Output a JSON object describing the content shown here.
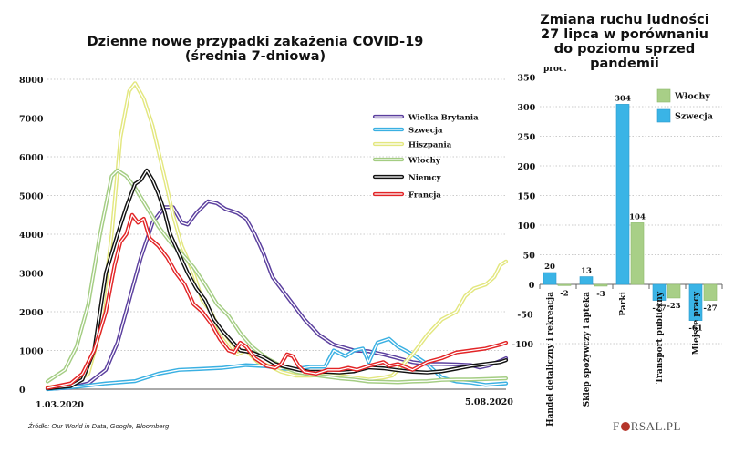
{
  "source_note": "Źródło: Our World in Data, Google,  Bloomberg",
  "logo": {
    "prefix": "F",
    "suffix": "RSAL.PL"
  },
  "chart_data": [
    {
      "type": "line",
      "title": "Dzienne nowe przypadki zakażenia COVID-19",
      "subtitle": "(średnia 7-dniowa)",
      "xlabel": "",
      "ylabel": "",
      "x_unit": "days since 1.03.2020",
      "x_range": [
        0,
        157
      ],
      "x_tick_labels": [
        "1.03.2020",
        "5.08.2020"
      ],
      "ylim": [
        0,
        8000
      ],
      "y_ticks": [
        0,
        1000,
        2000,
        3000,
        4000,
        5000,
        6000,
        7000,
        8000
      ],
      "grid": true,
      "legend_position": "top-right",
      "series": [
        {
          "name": "Wielka Brytania",
          "color": "#5b3f9e",
          "points": [
            [
              0,
              5
            ],
            [
              8,
              40
            ],
            [
              14,
              150
            ],
            [
              20,
              500
            ],
            [
              24,
              1200
            ],
            [
              28,
              2300
            ],
            [
              32,
              3400
            ],
            [
              36,
              4300
            ],
            [
              40,
              4700
            ],
            [
              43,
              4700
            ],
            [
              46,
              4300
            ],
            [
              48,
              4250
            ],
            [
              51,
              4550
            ],
            [
              55,
              4850
            ],
            [
              58,
              4800
            ],
            [
              61,
              4650
            ],
            [
              65,
              4550
            ],
            [
              68,
              4400
            ],
            [
              71,
              4000
            ],
            [
              74,
              3500
            ],
            [
              77,
              2900
            ],
            [
              80,
              2600
            ],
            [
              84,
              2200
            ],
            [
              88,
              1800
            ],
            [
              93,
              1400
            ],
            [
              98,
              1150
            ],
            [
              105,
              1000
            ],
            [
              110,
              980
            ],
            [
              115,
              900
            ],
            [
              120,
              800
            ],
            [
              125,
              700
            ],
            [
              130,
              650
            ],
            [
              135,
              650
            ],
            [
              140,
              640
            ],
            [
              145,
              620
            ],
            [
              148,
              560
            ],
            [
              151,
              610
            ],
            [
              155,
              730
            ],
            [
              157,
              800
            ]
          ]
        },
        {
          "name": "Szwecja",
          "color": "#3ab0e2",
          "points": [
            [
              0,
              0
            ],
            [
              10,
              60
            ],
            [
              20,
              150
            ],
            [
              30,
              210
            ],
            [
              38,
              400
            ],
            [
              45,
              500
            ],
            [
              52,
              520
            ],
            [
              60,
              550
            ],
            [
              68,
              620
            ],
            [
              75,
              590
            ],
            [
              80,
              530
            ],
            [
              85,
              520
            ],
            [
              90,
              580
            ],
            [
              95,
              580
            ],
            [
              98,
              1000
            ],
            [
              102,
              850
            ],
            [
              105,
              1000
            ],
            [
              108,
              1050
            ],
            [
              110,
              700
            ],
            [
              113,
              1200
            ],
            [
              117,
              1300
            ],
            [
              120,
              1100
            ],
            [
              125,
              900
            ],
            [
              130,
              650
            ],
            [
              135,
              300
            ],
            [
              140,
              200
            ],
            [
              145,
              170
            ],
            [
              150,
              110
            ],
            [
              157,
              150
            ]
          ]
        },
        {
          "name": "Hiszpania",
          "color": "#e3e77f",
          "points": [
            [
              0,
              50
            ],
            [
              8,
              100
            ],
            [
              14,
              400
            ],
            [
              18,
              1500
            ],
            [
              22,
              4000
            ],
            [
              25,
              6500
            ],
            [
              28,
              7700
            ],
            [
              30,
              7900
            ],
            [
              33,
              7500
            ],
            [
              36,
              6800
            ],
            [
              40,
              5500
            ],
            [
              43,
              4500
            ],
            [
              46,
              3700
            ],
            [
              50,
              3000
            ],
            [
              53,
              2300
            ],
            [
              56,
              2000
            ],
            [
              59,
              1500
            ],
            [
              62,
              1200
            ],
            [
              65,
              900
            ],
            [
              68,
              1000
            ],
            [
              72,
              700
            ],
            [
              76,
              600
            ],
            [
              80,
              450
            ],
            [
              85,
              350
            ],
            [
              90,
              350
            ],
            [
              95,
              380
            ],
            [
              100,
              350
            ],
            [
              105,
              300
            ],
            [
              110,
              250
            ],
            [
              115,
              300
            ],
            [
              118,
              350
            ],
            [
              120,
              500
            ],
            [
              125,
              900
            ],
            [
              130,
              1400
            ],
            [
              135,
              1800
            ],
            [
              140,
              2000
            ],
            [
              143,
              2400
            ],
            [
              146,
              2600
            ],
            [
              150,
              2700
            ],
            [
              153,
              2900
            ],
            [
              155,
              3200
            ],
            [
              157,
              3300
            ]
          ]
        },
        {
          "name": "Włochy",
          "color": "#a4cd83",
          "points": [
            [
              0,
              200
            ],
            [
              6,
              500
            ],
            [
              10,
              1100
            ],
            [
              14,
              2200
            ],
            [
              18,
              4000
            ],
            [
              22,
              5500
            ],
            [
              24,
              5650
            ],
            [
              27,
              5500
            ],
            [
              30,
              5200
            ],
            [
              34,
              4700
            ],
            [
              38,
              4200
            ],
            [
              42,
              3800
            ],
            [
              46,
              3500
            ],
            [
              50,
              3150
            ],
            [
              54,
              2700
            ],
            [
              58,
              2200
            ],
            [
              62,
              1900
            ],
            [
              66,
              1450
            ],
            [
              70,
              1100
            ],
            [
              75,
              800
            ],
            [
              80,
              600
            ],
            [
              85,
              450
            ],
            [
              90,
              380
            ],
            [
              95,
              330
            ],
            [
              100,
              280
            ],
            [
              105,
              250
            ],
            [
              110,
              200
            ],
            [
              115,
              190
            ],
            [
              120,
              180
            ],
            [
              125,
              200
            ],
            [
              130,
              210
            ],
            [
              135,
              240
            ],
            [
              140,
              250
            ],
            [
              145,
              250
            ],
            [
              150,
              260
            ],
            [
              157,
              280
            ]
          ]
        },
        {
          "name": "Niemcy",
          "color": "#111111",
          "points": [
            [
              0,
              20
            ],
            [
              8,
              80
            ],
            [
              12,
              250
            ],
            [
              16,
              1000
            ],
            [
              20,
              3000
            ],
            [
              24,
              4000
            ],
            [
              27,
              4700
            ],
            [
              30,
              5300
            ],
            [
              32,
              5400
            ],
            [
              34,
              5650
            ],
            [
              36,
              5400
            ],
            [
              38,
              5050
            ],
            [
              40,
              4600
            ],
            [
              42,
              4000
            ],
            [
              45,
              3500
            ],
            [
              48,
              3000
            ],
            [
              51,
              2600
            ],
            [
              54,
              2300
            ],
            [
              57,
              1800
            ],
            [
              60,
              1500
            ],
            [
              63,
              1250
            ],
            [
              66,
              1000
            ],
            [
              70,
              950
            ],
            [
              74,
              820
            ],
            [
              78,
              650
            ],
            [
              82,
              570
            ],
            [
              86,
              500
            ],
            [
              90,
              450
            ],
            [
              95,
              450
            ],
            [
              100,
              430
            ],
            [
              105,
              460
            ],
            [
              110,
              560
            ],
            [
              115,
              540
            ],
            [
              120,
              490
            ],
            [
              125,
              450
            ],
            [
              130,
              430
            ],
            [
              135,
              460
            ],
            [
              140,
              530
            ],
            [
              145,
              600
            ],
            [
              150,
              650
            ],
            [
              155,
              700
            ],
            [
              157,
              750
            ]
          ]
        },
        {
          "name": "Francja",
          "color": "#e22426",
          "points": [
            [
              0,
              30
            ],
            [
              8,
              150
            ],
            [
              12,
              400
            ],
            [
              16,
              1000
            ],
            [
              20,
              2000
            ],
            [
              23,
              3200
            ],
            [
              25,
              3800
            ],
            [
              27,
              4000
            ],
            [
              29,
              4500
            ],
            [
              31,
              4300
            ],
            [
              33,
              4400
            ],
            [
              35,
              3900
            ],
            [
              38,
              3700
            ],
            [
              41,
              3400
            ],
            [
              44,
              3000
            ],
            [
              47,
              2700
            ],
            [
              50,
              2200
            ],
            [
              53,
              2000
            ],
            [
              56,
              1700
            ],
            [
              59,
              1300
            ],
            [
              62,
              1000
            ],
            [
              64,
              950
            ],
            [
              66,
              1200
            ],
            [
              68,
              1100
            ],
            [
              71,
              800
            ],
            [
              75,
              600
            ],
            [
              78,
              550
            ],
            [
              80,
              650
            ],
            [
              82,
              900
            ],
            [
              84,
              850
            ],
            [
              86,
              600
            ],
            [
              88,
              450
            ],
            [
              92,
              400
            ],
            [
              96,
              500
            ],
            [
              100,
              500
            ],
            [
              103,
              550
            ],
            [
              106,
              500
            ],
            [
              110,
              600
            ],
            [
              115,
              700
            ],
            [
              117,
              600
            ],
            [
              120,
              650
            ],
            [
              125,
              500
            ],
            [
              130,
              700
            ],
            [
              135,
              800
            ],
            [
              140,
              950
            ],
            [
              145,
              1000
            ],
            [
              150,
              1050
            ],
            [
              155,
              1150
            ],
            [
              157,
              1200
            ]
          ]
        }
      ]
    },
    {
      "type": "bar",
      "title": "Zmiana ruchu ludności 27 lipca w porównaniu do poziomu sprzed pandemii",
      "title_lines": [
        "Zmiana ruchu ludności",
        "27 lipca w porównaniu",
        "do poziomu sprzed pandemii"
      ],
      "ylabel": "proc.",
      "ylim": [
        -100,
        350
      ],
      "y_ticks": [
        -100,
        -50,
        0,
        50,
        100,
        150,
        200,
        250,
        300,
        350
      ],
      "grid": true,
      "legend_position": "top-right",
      "categories": [
        "Handel detaliczny i rekreacja",
        "Sklep spożywczy i apteka",
        "Parki",
        "Transport publiczny",
        "Miejsce pracy"
      ],
      "series": [
        {
          "name": "Szwecja",
          "color": "#3ab4e6",
          "values": [
            20,
            13,
            304,
            -27,
            -61
          ]
        },
        {
          "name": "Włochy",
          "color": "#a8cf87",
          "values": [
            -2,
            -3,
            104,
            -23,
            -27
          ]
        }
      ],
      "legend_order": [
        "Włochy",
        "Szwecja"
      ]
    }
  ]
}
